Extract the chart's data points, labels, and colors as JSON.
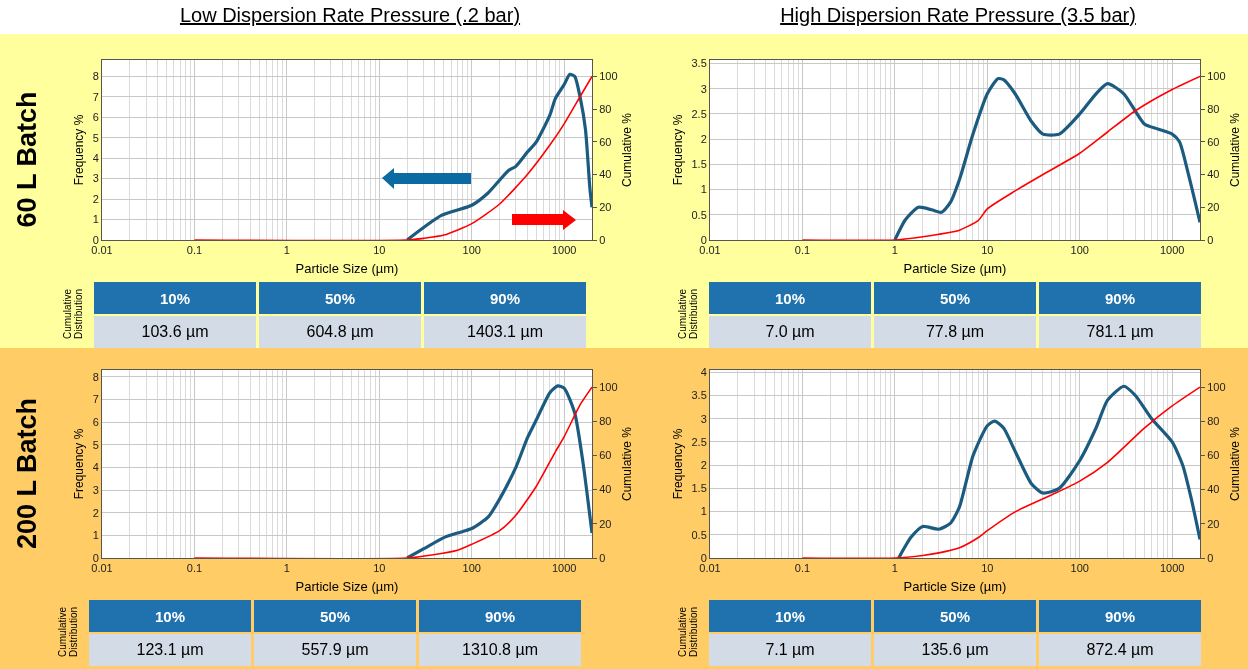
{
  "chart_data": [
    {
      "type": "line",
      "title": "Low Dispersion Rate Pressure (.2 bar)",
      "annotations": [
        "60 L Batch"
      ],
      "xlabel": "Particle Size (µm)",
      "ylabel": "Frequency %",
      "y2label": "Cumulative %",
      "log": "x",
      "grid": true,
      "marker": "none",
      "line_style": "solid",
      "xlim": [
        0.01,
        2000
      ],
      "xticks": [
        0.01,
        0.1,
        1,
        10,
        100,
        1000
      ],
      "ylim": [
        0,
        8.8
      ],
      "yticks": [
        0,
        1,
        2,
        3,
        4,
        5,
        6,
        7,
        8
      ],
      "y2lim": [
        0,
        110
      ],
      "y2ticks": [
        0,
        20,
        40,
        60,
        80,
        100
      ],
      "series": [
        {
          "color": "#ff0000",
          "axis": "y2",
          "x": [
            0.1,
            20,
            30,
            50,
            100,
            200,
            400,
            700,
            1000,
            1500,
            2000
          ],
          "values": [
            0,
            0,
            1,
            3,
            10,
            22,
            40,
            58,
            71,
            88,
            100
          ]
        },
        {
          "color": "#1b5b80",
          "x": [
            20,
            47,
            100,
            150,
            250,
            300,
            400,
            500,
            700,
            800,
            1000,
            1150,
            1300,
            1500,
            1700,
            1900,
            2000
          ],
          "values": [
            0,
            1.2,
            1.7,
            2.3,
            3.4,
            3.6,
            4.3,
            4.8,
            6.1,
            6.9,
            7.6,
            8.1,
            8.0,
            6.9,
            5.4,
            2.5,
            1.6
          ]
        }
      ]
    },
    {
      "type": "line",
      "title": "High Dispersion Rate Pressure (3.5 bar)",
      "xlabel": "Particle Size (µm)",
      "ylabel": "Frequency %",
      "y2label": "Cumulative %",
      "log": "x",
      "grid": true,
      "marker": "none",
      "line_style": "solid",
      "xlim": [
        0.01,
        2000
      ],
      "xticks": [
        0.01,
        0.1,
        1,
        10,
        100,
        1000
      ],
      "ylim": [
        0,
        3.57
      ],
      "yticks": [
        0,
        0.5,
        1,
        1.5,
        2,
        2.5,
        3,
        3.5
      ],
      "y2lim": [
        0,
        110
      ],
      "y2ticks": [
        0,
        20,
        40,
        60,
        80,
        100
      ],
      "series": [
        {
          "color": "#ff0000",
          "axis": "y2",
          "x": [
            0.1,
            1,
            2,
            3,
            5,
            8,
            10,
            20,
            40,
            100,
            200,
            400,
            1000,
            2000
          ],
          "values": [
            0,
            0,
            2,
            3.5,
            6,
            12,
            19,
            30,
            40,
            53,
            66,
            79,
            92,
            100
          ]
        },
        {
          "color": "#1b5b80",
          "x": [
            1,
            1.3,
            1.8,
            2.5,
            3.2,
            4,
            5,
            7,
            10,
            13,
            15,
            20,
            30,
            40,
            60,
            100,
            150,
            200,
            300,
            500,
            700,
            1000,
            1200,
            1500,
            2000
          ],
          "values": [
            0,
            0.4,
            0.65,
            0.6,
            0.55,
            0.75,
            1.2,
            2.1,
            2.9,
            3.2,
            3.18,
            2.9,
            2.35,
            2.1,
            2.1,
            2.5,
            2.9,
            3.1,
            2.9,
            2.3,
            2.2,
            2.1,
            1.95,
            1.3,
            0.35
          ]
        }
      ]
    },
    {
      "type": "other",
      "ylabel": "Cumulative Distribution",
      "categories": [
        "10%",
        "50%",
        "90%"
      ],
      "annotations": [
        "103.6 µm",
        "604.8 µm",
        "1403.1 µm"
      ]
    },
    {
      "type": "other",
      "ylabel": "Cumulative Distribution",
      "categories": [
        "10%",
        "50%",
        "90%"
      ],
      "annotations": [
        "7.0 µm",
        "77.8 µm",
        "781.1 µm"
      ]
    },
    {
      "type": "line",
      "annotations": [
        "200 L Batch"
      ],
      "xlabel": "Particle Size (µm)",
      "ylabel": "Frequency %",
      "y2label": "Cumulative %",
      "log": "x",
      "grid": true,
      "marker": "none",
      "line_style": "solid",
      "xlim": [
        0.01,
        2000
      ],
      "xticks": [
        0.01,
        0.1,
        1,
        10,
        100,
        1000
      ],
      "ylim": [
        0,
        8.3
      ],
      "yticks": [
        0,
        1,
        2,
        3,
        4,
        5,
        6,
        7,
        8
      ],
      "y2lim": [
        0,
        110
      ],
      "y2ticks": [
        0,
        20,
        40,
        60,
        80,
        100
      ],
      "series": [
        {
          "color": "#ff0000",
          "axis": "y2",
          "x": [
            0.1,
            20,
            40,
            70,
            100,
            200,
            300,
            500,
            800,
            1000,
            1500,
            2000
          ],
          "values": [
            0,
            0,
            2,
            4.5,
            8,
            16,
            25,
            42,
            62,
            71,
            90,
            100
          ]
        },
        {
          "color": "#1b5b80",
          "x": [
            20,
            30,
            50,
            70,
            100,
            150,
            200,
            300,
            400,
            500,
            700,
            850,
            1000,
            1300,
            1600,
            2000
          ],
          "values": [
            0,
            0.4,
            0.9,
            1.1,
            1.3,
            1.8,
            2.6,
            4.0,
            5.3,
            6.1,
            7.3,
            7.6,
            7.5,
            6.4,
            4.2,
            1.1
          ]
        }
      ]
    },
    {
      "type": "line",
      "xlabel": "Particle Size (µm)",
      "ylabel": "Frequency %",
      "y2label": "Cumulative %",
      "log": "x",
      "grid": true,
      "marker": "none",
      "line_style": "solid",
      "xlim": [
        0.01,
        2000
      ],
      "xticks": [
        0.01,
        0.1,
        1,
        10,
        100,
        1000
      ],
      "ylim": [
        0,
        4.05
      ],
      "yticks": [
        0,
        0.5,
        1,
        1.5,
        2,
        2.5,
        3,
        3.5,
        4
      ],
      "y2lim": [
        0,
        110
      ],
      "y2ticks": [
        0,
        20,
        40,
        60,
        80,
        100
      ],
      "series": [
        {
          "color": "#ff0000",
          "axis": "y2",
          "x": [
            0.1,
            1,
            2,
            3,
            5,
            8,
            10,
            20,
            50,
            100,
            200,
            500,
            1000,
            2000
          ],
          "values": [
            0,
            0,
            1.5,
            3,
            6,
            12,
            16,
            27,
            37,
            45,
            56,
            76,
            89,
            100
          ]
        },
        {
          "color": "#1b5b80",
          "x": [
            1.1,
            1.5,
            2,
            3,
            4,
            5,
            7,
            10,
            12,
            15,
            20,
            30,
            40,
            60,
            100,
            150,
            200,
            300,
            400,
            600,
            1000,
            1300,
            1600,
            2000
          ],
          "values": [
            0,
            0.45,
            0.68,
            0.62,
            0.75,
            1.1,
            2.2,
            2.85,
            2.95,
            2.8,
            2.3,
            1.6,
            1.4,
            1.5,
            2.1,
            2.8,
            3.4,
            3.7,
            3.5,
            3.0,
            2.5,
            2.0,
            1.3,
            0.4
          ]
        }
      ]
    },
    {
      "type": "other",
      "ylabel": "Cumulative Distribution",
      "categories": [
        "10%",
        "50%",
        "90%"
      ],
      "annotations": [
        "123.1 µm",
        "557.9 µm",
        "1310.8 µm"
      ]
    },
    {
      "type": "other",
      "ylabel": "Cumulative Distribution",
      "categories": [
        "10%",
        "50%",
        "90%"
      ],
      "annotations": [
        "7.1 µm",
        "135.6 µm",
        "872.4 µm"
      ]
    }
  ]
}
